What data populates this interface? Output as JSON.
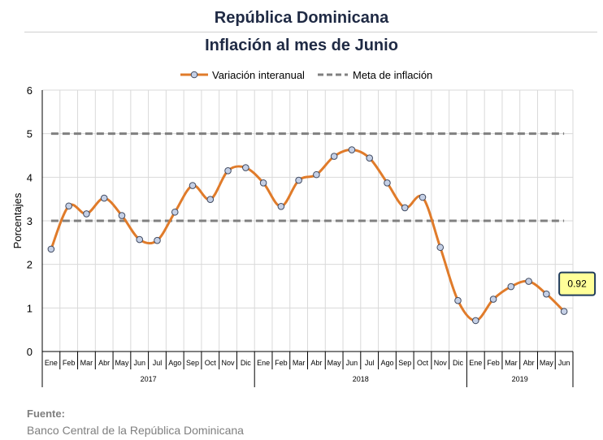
{
  "header": {
    "title": "República Dominicana",
    "subtitle": "Inflación al mes de Junio"
  },
  "footer": {
    "source_label": "Fuente:",
    "source_text": "Banco Central de la República Dominicana"
  },
  "chart_data": {
    "type": "line",
    "title": "República Dominicana",
    "subtitle": "Inflación al mes de Junio",
    "ylabel": "Porcentajes",
    "ylim": [
      0,
      6
    ],
    "yticks": [
      0,
      1,
      2,
      3,
      4,
      5,
      6
    ],
    "grid": true,
    "legend_position": "top",
    "categories": [
      "Ene",
      "Feb",
      "Mar",
      "Abr",
      "May",
      "Jun",
      "Jul",
      "Ago",
      "Sep",
      "Oct",
      "Nov",
      "Dic",
      "Ene",
      "Feb",
      "Mar",
      "Abr",
      "May",
      "Jun",
      "Jul",
      "Ago",
      "Sep",
      "Oct",
      "Nov",
      "Dic",
      "Ene",
      "Feb",
      "Mar",
      "Abr",
      "May",
      "Jun"
    ],
    "year_groups": [
      {
        "label": "2017",
        "count": 12
      },
      {
        "label": "2018",
        "count": 12
      },
      {
        "label": "2019",
        "count": 6
      }
    ],
    "series": [
      {
        "name": "Variación interanual",
        "color": "#e07b2a",
        "style": "smooth-line-markers",
        "values": [
          2.35,
          3.34,
          3.16,
          3.52,
          3.12,
          2.57,
          2.55,
          3.2,
          3.81,
          3.49,
          4.15,
          4.22,
          3.87,
          3.33,
          3.93,
          4.06,
          4.48,
          4.63,
          4.44,
          3.87,
          3.3,
          3.54,
          2.39,
          1.17,
          0.71,
          1.2,
          1.49,
          1.61,
          1.32,
          0.92
        ]
      },
      {
        "name": "Meta de inflación",
        "color": "#808080",
        "style": "dashed",
        "values_constant": [
          3,
          5
        ]
      }
    ],
    "annotation": {
      "label": "0.92",
      "index": 29
    }
  }
}
